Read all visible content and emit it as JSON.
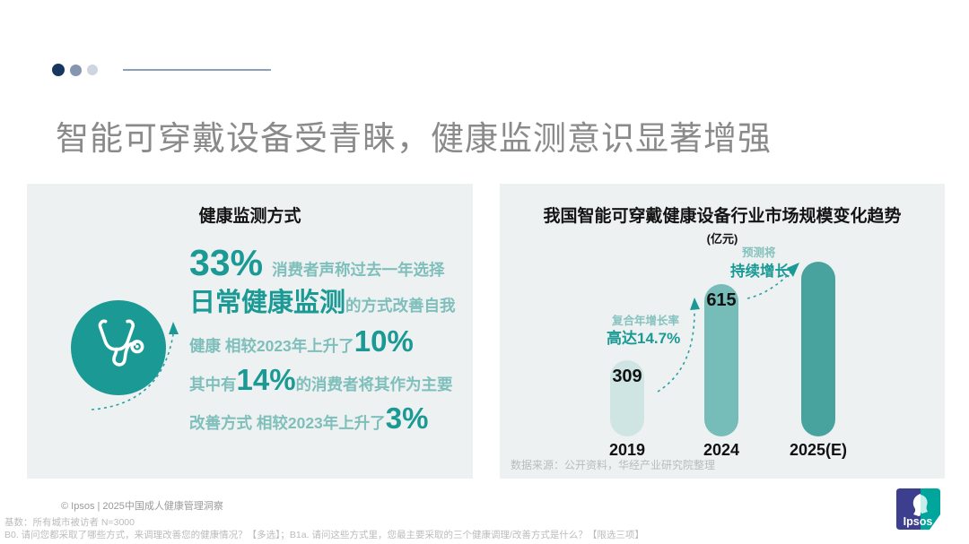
{
  "slide": {
    "title": "智能可穿戴设备受青睐，健康监测意识显著增强"
  },
  "left_panel": {
    "header": "健康监测方式",
    "icon": "stethoscope-icon",
    "rows": [
      {
        "big": "33%",
        "small": "消费者声称过去一年选择"
      },
      {
        "big": "日常健康监测",
        "small": "的方式改善自我"
      },
      {
        "small": "健康 相较2023年上升了",
        "big": "10%"
      },
      {
        "pre": "其中有",
        "big": "14%",
        "post": "的消费者将其作为主要"
      },
      {
        "small": "改善方式 相较2023年上升了",
        "big": "3%"
      }
    ]
  },
  "right_panel": {
    "title": "我国智能可穿戴健康设备行业市场规模变化趋势",
    "unit": "(亿元)",
    "cagr_label": "复合年增长率",
    "cagr_value": "高达14.7%",
    "forecast_label": "预测将",
    "forecast_value": "持续增长",
    "source": "数据来源：公开资料，华经产业研究院整理"
  },
  "chart_data": {
    "type": "bar",
    "title": "我国智能可穿戴健康设备行业市场规模变化趋势",
    "ylabel": "亿元",
    "categories": [
      "2019",
      "2024",
      "2025(E)"
    ],
    "values": [
      309,
      615,
      null
    ],
    "value_labels": [
      "309",
      "615",
      ""
    ],
    "forecast_estimate": 705,
    "scale_max": 705,
    "colors": [
      "#cfe5e3",
      "#76bcb8",
      "#48a39e"
    ],
    "annotations": [
      "复合年增长率 高达14.7% (2019→2024 CAGR)",
      "2025(E) 预测将持续增长 (无数值标签)"
    ],
    "legend": "none",
    "grid": false
  },
  "footer": {
    "copyright": "© Ipsos | 2025中国成人健康管理洞察",
    "base": "基数：所有城市被访者 N=3000",
    "questions": "B0. 请问您都采取了哪些方式，来调理改善您的健康情况？【多选】；B1a. 请问这些方式里，您最主要采取的三个健康调理/改善方式是什么？【限选三项】",
    "logo_text": "Ipsos"
  },
  "colors": {
    "teal_dark": "#1b9a95",
    "teal_light_text": "#7fbfbb",
    "panel_bg": "#edf1f1",
    "title_gray": "#8a8a8a",
    "dot_navy": "#17375e",
    "dot_slate": "#8496b0",
    "dot_light": "#cfd5df",
    "logo_blue": "#3d3e8e",
    "logo_teal": "#00a59b"
  }
}
